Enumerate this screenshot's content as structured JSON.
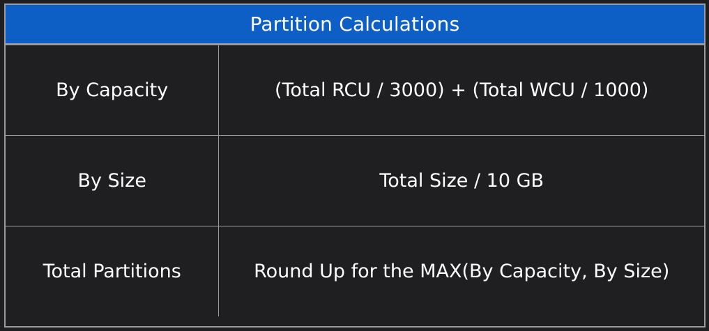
{
  "table": {
    "title": "Partition Calculations",
    "rows": [
      {
        "label": "By Capacity",
        "formula": "(Total RCU / 3000) + (Total WCU / 1000)"
      },
      {
        "label": "By Size",
        "formula": "Total Size / 10 GB"
      },
      {
        "label": "Total Partitions",
        "formula": "Round Up for the MAX(By Capacity, By Size)"
      }
    ]
  },
  "colors": {
    "header_background": "#0e5fc5",
    "table_background": "#1f1f22",
    "border": "#9b9b9f",
    "text": "#ffffff"
  }
}
